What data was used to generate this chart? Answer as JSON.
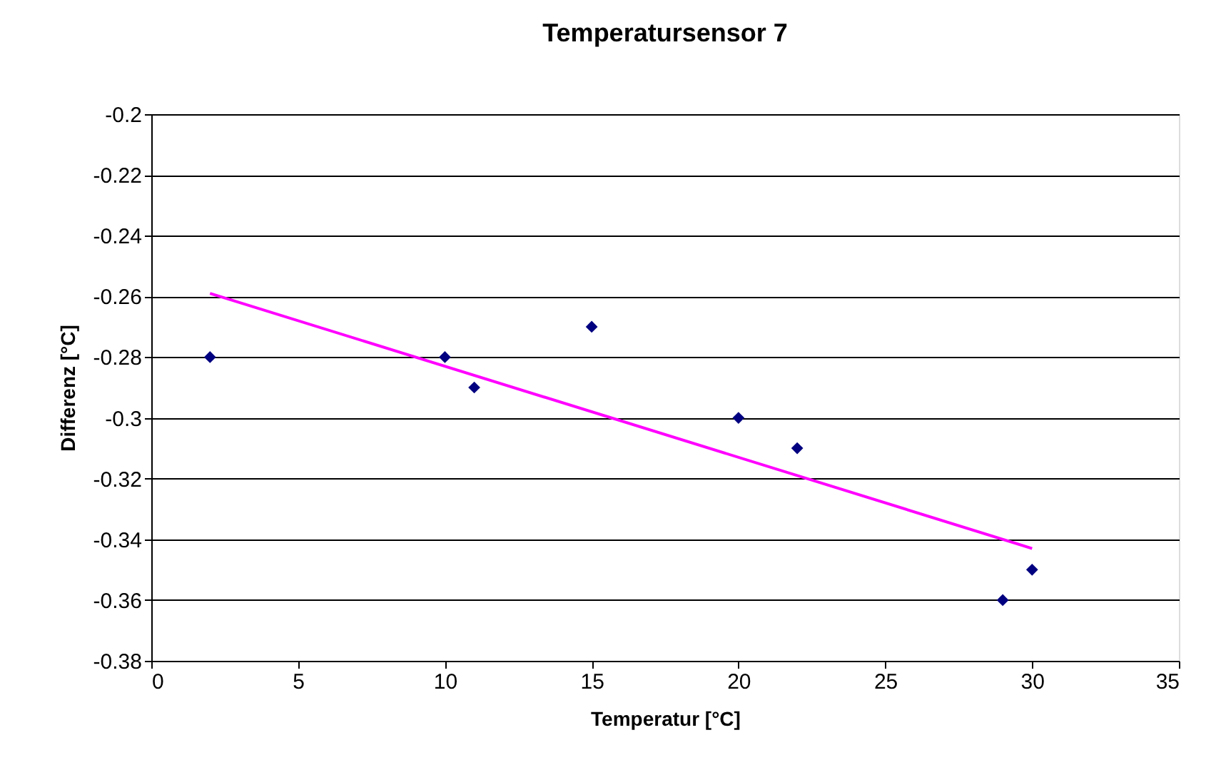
{
  "chart_data": {
    "type": "scatter",
    "title": "Temperatursensor 7",
    "xlabel": "Temperatur [°C]",
    "ylabel": "Differenz [°C]",
    "xlim": [
      0,
      35
    ],
    "xticks": [
      0,
      5,
      10,
      15,
      20,
      25,
      30,
      35
    ],
    "ylim": [
      -0.38,
      -0.2
    ],
    "yticks": [
      -0.38,
      -0.36,
      -0.34,
      -0.32,
      -0.3,
      -0.28,
      -0.26,
      -0.24,
      -0.22,
      -0.2
    ],
    "grid": "y",
    "series": [
      {
        "marker": "diamond",
        "color": "#000080",
        "x": [
          2,
          10,
          11,
          15,
          20,
          22,
          29,
          30
        ],
        "values": [
          -0.28,
          -0.28,
          -0.29,
          -0.27,
          -0.3,
          -0.31,
          -0.36,
          -0.35
        ]
      },
      {
        "type": "line",
        "color": "#ff00ff",
        "x": [
          2,
          30
        ],
        "values": [
          -0.259,
          -0.343
        ]
      }
    ]
  }
}
